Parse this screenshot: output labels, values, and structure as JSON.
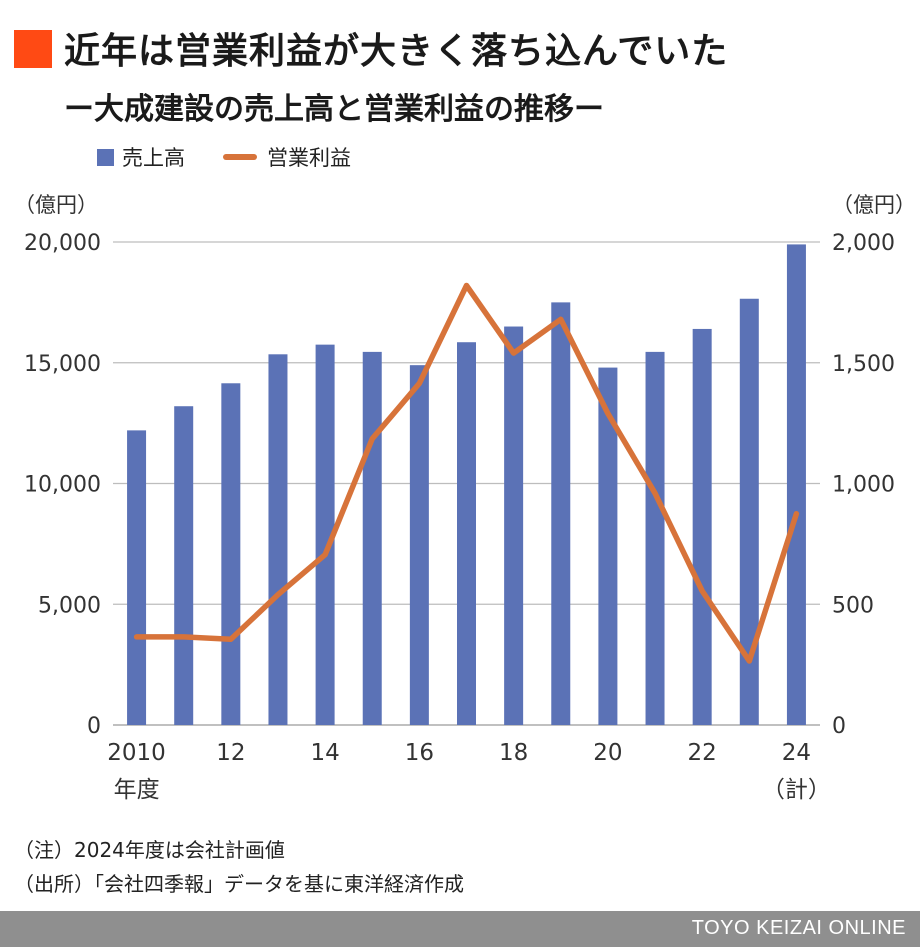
{
  "title": "近年は営業利益が大きく落ち込んでいた",
  "subtitle": "ー大成建設の売上高と営業利益の推移ー",
  "legend": {
    "bar_label": "売上高",
    "line_label": "営業利益"
  },
  "units": {
    "left": "（億円）",
    "right": "（億円）"
  },
  "notes": {
    "note1": "（注）2024年度は会社計画値",
    "note2": "（出所）「会社四季報」データを基に東洋経済作成"
  },
  "footer": {
    "brand": "TOYO KEIZAI ONLINE"
  },
  "colors": {
    "bar": "#5b72b6",
    "line": "#d7733a",
    "accent": "#ff4a14",
    "grid": "#bdbdbd",
    "footer": "#8f8f8f"
  },
  "chart_data": {
    "type": "bar+line",
    "categories": [
      "2010",
      "11",
      "12",
      "13",
      "14",
      "15",
      "16",
      "17",
      "18",
      "19",
      "20",
      "21",
      "22",
      "23",
      "24"
    ],
    "x_tick_labels": [
      {
        "index": 0,
        "text": "2010",
        "sub": "年度"
      },
      {
        "index": 2,
        "text": "12"
      },
      {
        "index": 4,
        "text": "14"
      },
      {
        "index": 6,
        "text": "16"
      },
      {
        "index": 8,
        "text": "18"
      },
      {
        "index": 10,
        "text": "20"
      },
      {
        "index": 12,
        "text": "22"
      },
      {
        "index": 14,
        "text": "24",
        "sub": "（計）"
      }
    ],
    "series": [
      {
        "name": "売上高",
        "type": "bar",
        "axis": "left",
        "values": [
          12200,
          13200,
          14150,
          15350,
          15750,
          15450,
          14900,
          15850,
          16500,
          17500,
          14800,
          15450,
          16400,
          17650,
          19900
        ]
      },
      {
        "name": "営業利益",
        "type": "line",
        "axis": "right",
        "values": [
          365,
          365,
          355,
          540,
          705,
          1185,
          1415,
          1820,
          1540,
          1680,
          1290,
          960,
          555,
          265,
          875
        ]
      }
    ],
    "y_left": {
      "min": 0,
      "max": 20000,
      "ticks": [
        0,
        5000,
        10000,
        15000,
        20000
      ],
      "tick_labels": [
        "0",
        "5,000",
        "10,000",
        "15,000",
        "20,000"
      ]
    },
    "y_right": {
      "min": 0,
      "max": 2000,
      "ticks": [
        0,
        500,
        1000,
        1500,
        2000
      ],
      "tick_labels": [
        "0",
        "500",
        "1,000",
        "1,500",
        "2,000"
      ]
    },
    "grid": true,
    "legend_position": "top-left"
  }
}
